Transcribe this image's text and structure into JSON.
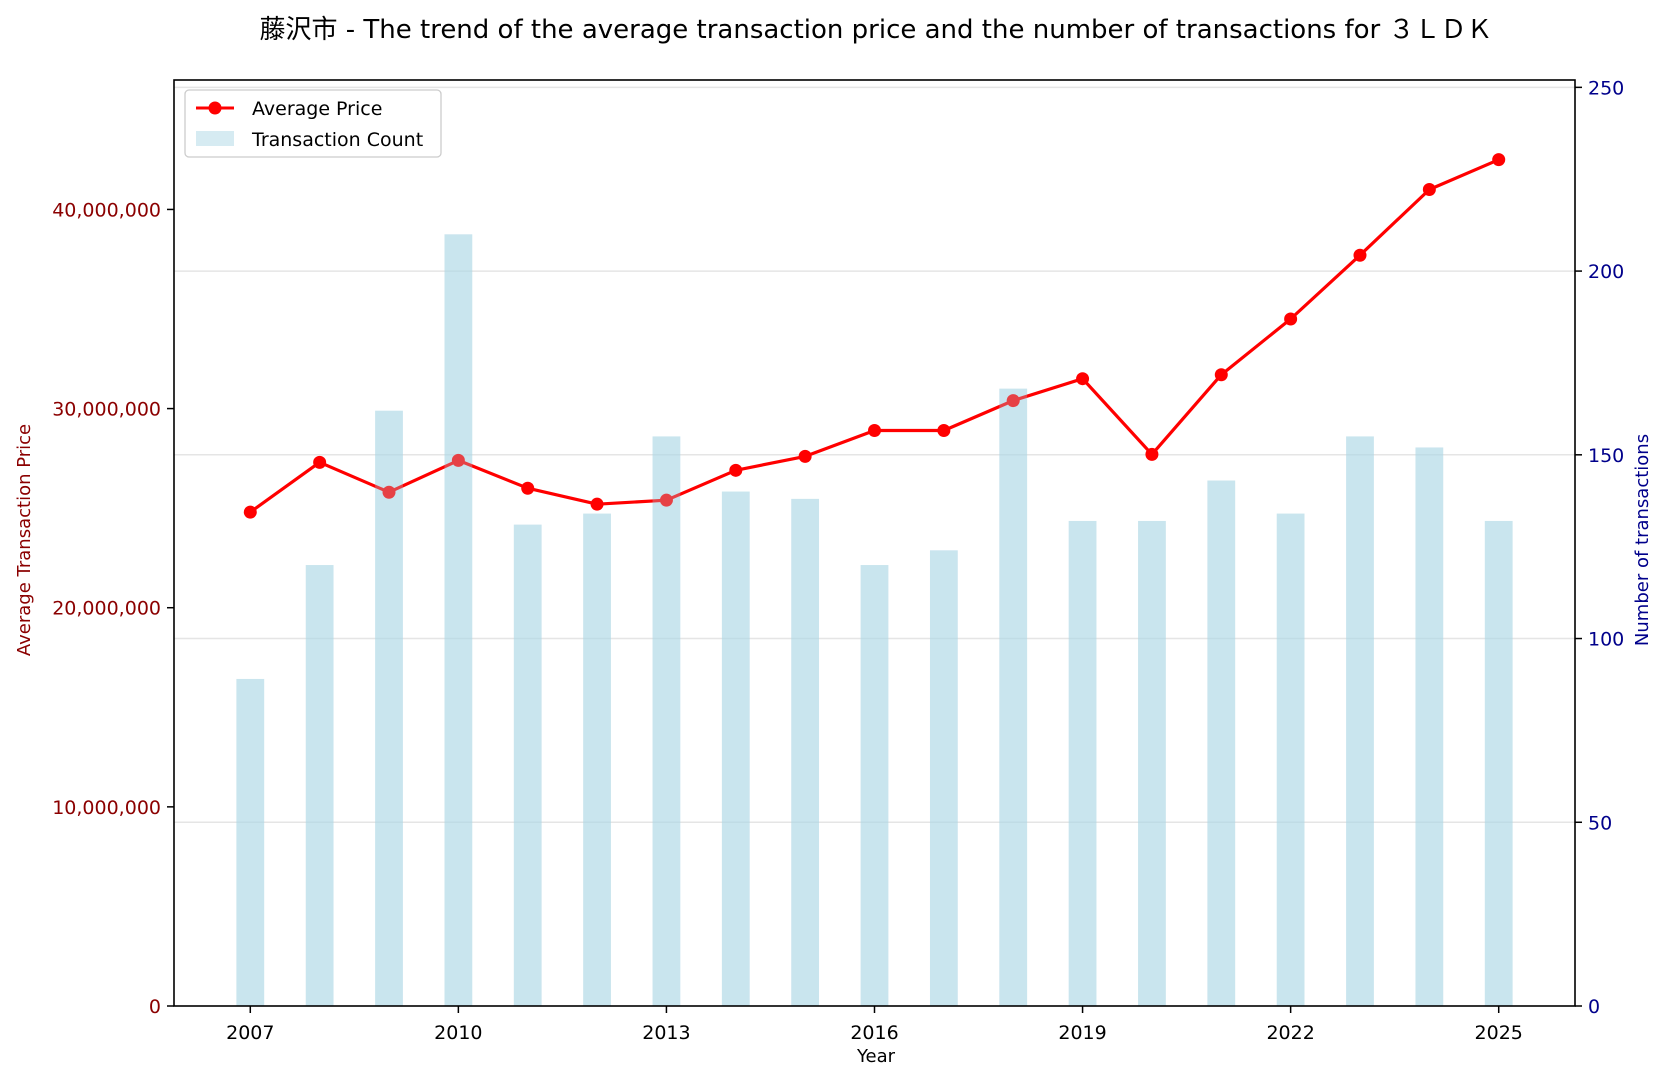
{
  "chart_data": {
    "type": "bar+line",
    "title": "藤沢市 - The trend of the average transaction price and the number of transactions for ３ＬＤＫ",
    "xlabel": "Year",
    "ylabel_left": "Average Transaction Price",
    "ylabel_right": "Number of transactions",
    "x_tick_labels": [
      "2007",
      "2010",
      "2013",
      "2016",
      "2019",
      "2022",
      "2025"
    ],
    "x": [
      2007,
      2008,
      2009,
      2010,
      2011,
      2012,
      2013,
      2014,
      2015,
      2016,
      2017,
      2018,
      2019,
      2020,
      2021,
      2022,
      2023,
      2024,
      2025
    ],
    "xlim": [
      2005.9,
      2026.1
    ],
    "y_left_ticks": [
      "0",
      "10,000,000",
      "20,000,000",
      "30,000,000",
      "40,000,000"
    ],
    "y_left_tick_values": [
      0,
      10000000,
      20000000,
      30000000,
      40000000
    ],
    "ylim_left": [
      0,
      46500000
    ],
    "y_right_ticks": [
      "0",
      "50",
      "100",
      "150",
      "200",
      "250"
    ],
    "y_right_tick_values": [
      0,
      50,
      100,
      150,
      200,
      250
    ],
    "ylim_right": [
      0,
      252
    ],
    "grid": true,
    "legend_position": "top-left",
    "series": [
      {
        "name": "Average Price",
        "kind": "line",
        "axis": "left",
        "color": "#ff0000",
        "values": [
          24800000,
          27300000,
          25800000,
          27400000,
          26000000,
          25200000,
          25400000,
          26900000,
          27600000,
          28900000,
          28900000,
          30400000,
          31500000,
          27700000,
          31700000,
          34500000,
          37700000,
          41000000,
          42500000
        ]
      },
      {
        "name": "Transaction Count",
        "kind": "bar",
        "axis": "right",
        "color": "#add8e6",
        "values": [
          89,
          120,
          162,
          210,
          131,
          134,
          155,
          140,
          138,
          120,
          124,
          168,
          132,
          132,
          143,
          134,
          155,
          152,
          132
        ]
      }
    ],
    "colors": {
      "left_axis": "#8b0000",
      "right_axis": "#00008b",
      "grid": "#e5e5e5"
    }
  }
}
